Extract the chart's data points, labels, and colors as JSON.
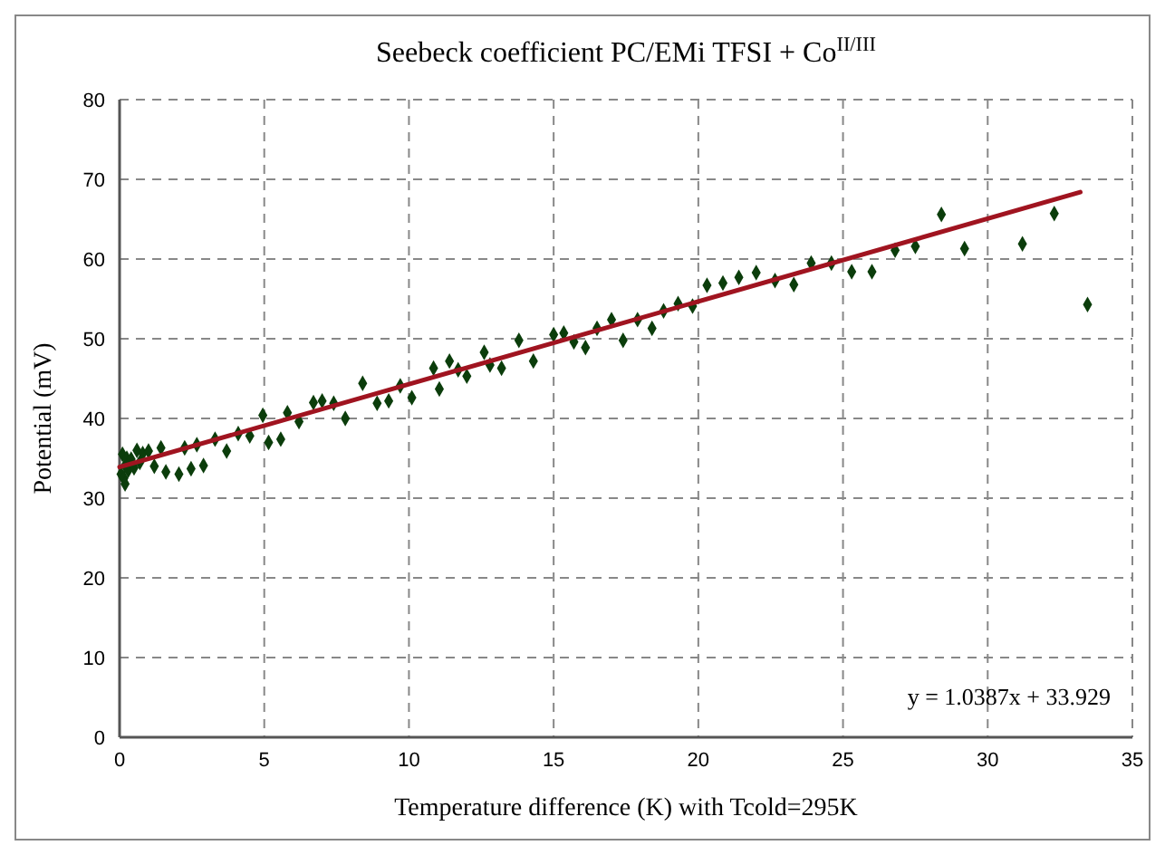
{
  "chart_data": {
    "type": "scatter",
    "title": "Seebeck coefficient PC/EMi TFSI + Co$^{II/III}$",
    "xlabel": "Temperature difference (K) with Tcold=295K",
    "ylabel": "Potential (mV)",
    "xlim": [
      0,
      35
    ],
    "ylim": [
      0,
      80
    ],
    "xticks": [
      0,
      5,
      10,
      15,
      20,
      25,
      30,
      35
    ],
    "yticks": [
      0,
      10,
      20,
      30,
      40,
      50,
      60,
      70,
      80
    ],
    "grid": true,
    "marker": "diamond",
    "annotations": [
      "y = 1.0387x + 33.929"
    ],
    "series": [
      {
        "color": "#0b3d0b",
        "x": [
          0.05,
          0.1,
          0.15,
          0.19,
          0.19,
          0.25,
          0.3,
          0.4,
          0.5,
          0.6,
          0.7,
          0.8,
          1.0,
          1.2,
          1.43,
          1.6,
          2.05,
          2.25,
          2.47,
          2.67,
          2.9,
          3.3,
          3.7,
          4.1,
          4.5,
          4.95,
          5.15,
          5.57,
          5.8,
          6.2,
          6.7,
          7.0,
          7.4,
          7.8,
          8.4,
          8.9,
          9.3,
          9.7,
          10.1,
          10.85,
          11.05,
          11.4,
          11.7,
          12.0,
          12.6,
          12.8,
          13.2,
          13.8,
          14.3,
          15.0,
          15.35,
          15.7,
          16.1,
          16.5,
          17.0,
          17.4,
          17.9,
          18.4,
          18.8,
          19.3,
          19.8,
          20.3,
          20.85,
          21.4,
          22.0,
          22.65,
          23.3,
          23.9,
          24.6,
          25.3,
          26.0,
          26.8,
          27.5,
          28.4,
          29.2,
          31.2,
          32.3,
          33.45
        ],
        "values": [
          33.0,
          35.5,
          32.5,
          34.1,
          31.8,
          35.0,
          33.5,
          34.9,
          33.8,
          36.0,
          34.5,
          35.6,
          35.9,
          34.0,
          36.3,
          33.3,
          33.0,
          36.3,
          33.7,
          36.7,
          34.1,
          37.4,
          35.9,
          38.1,
          37.8,
          40.4,
          37.0,
          37.4,
          40.7,
          39.6,
          42.0,
          42.2,
          41.9,
          40.0,
          44.4,
          41.9,
          42.2,
          44.1,
          42.6,
          46.3,
          43.7,
          47.2,
          46.1,
          45.3,
          48.3,
          46.7,
          46.3,
          49.8,
          47.2,
          50.5,
          50.7,
          49.6,
          48.9,
          51.3,
          52.4,
          49.8,
          52.4,
          51.3,
          53.5,
          54.4,
          54.1,
          56.7,
          57.0,
          57.7,
          58.3,
          57.3,
          56.8,
          59.5,
          59.5,
          58.4,
          58.4,
          61.1,
          61.6,
          65.6,
          61.3,
          61.9,
          65.7,
          54.3
        ]
      },
      {
        "type": "line",
        "marker": "none",
        "color": "#a01420",
        "x": [
          0,
          33.2
        ],
        "values": [
          33.9,
          68.4
        ]
      }
    ]
  }
}
